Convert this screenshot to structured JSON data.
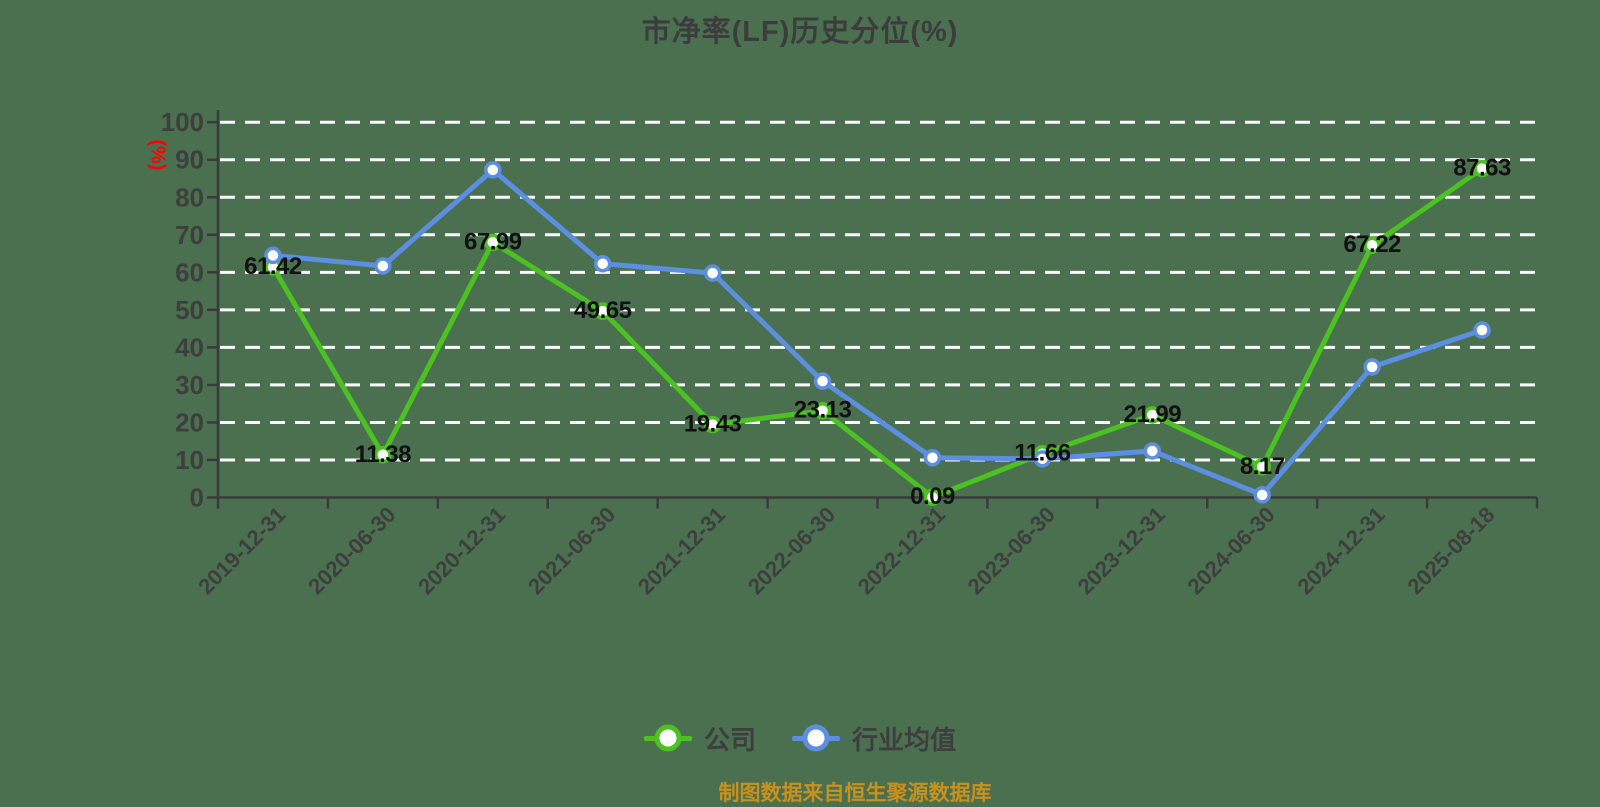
{
  "title": "市净率(LF)历史分位(%)",
  "y_axis": {
    "unit": "(%)",
    "ticks": [
      "0",
      "10",
      "20",
      "30",
      "40",
      "50",
      "60",
      "70",
      "80",
      "90",
      "100"
    ]
  },
  "chart_data": {
    "type": "line",
    "title": "市净率(LF)历史分位(%)",
    "ylabel": "(%)",
    "ylim": [
      0,
      100
    ],
    "grid": "horizontal white dashed lines, step 10",
    "legend_position": "bottom",
    "categories": [
      "2019-12-31",
      "2020-06-30",
      "2020-12-31",
      "2021-06-30",
      "2021-12-31",
      "2022-06-30",
      "2022-12-31",
      "2023-06-30",
      "2023-12-31",
      "2024-06-30",
      "2024-12-31",
      "2025-08-18"
    ],
    "series": [
      {
        "name": "公司",
        "color": "#4CC122",
        "values": [
          61.42,
          11.38,
          67.99,
          49.65,
          19.43,
          23.13,
          0.09,
          11.66,
          21.99,
          8.17,
          67.22,
          87.63
        ],
        "point_labels": [
          "61.42",
          "11.38",
          "67.99",
          "49.65",
          "19.43",
          "23.13",
          "0.09",
          "11.66",
          "21.99",
          "8.17",
          "67.22",
          "87.63"
        ],
        "show_labels": true
      },
      {
        "name": "行业均值",
        "color": "#5C8FE1",
        "values": [
          64.5,
          61.7,
          87.3,
          62.3,
          59.8,
          31.0,
          10.6,
          10.3,
          12.4,
          0.7,
          34.8,
          44.6
        ],
        "show_labels": false
      }
    ]
  },
  "footer": "制图数据来自恒生聚源数据库",
  "colors": {
    "background": "#4A7050",
    "company_series": "#4CC122",
    "industry_series": "#5C8FE1",
    "marker_fill": "#FFFFFF",
    "gridline": "#FAFAFA",
    "axis_line": "#3A3A3A",
    "tick_text": "#3E3E3E",
    "title_text": "#3C3C3C",
    "value_label_text": "#111111",
    "unit_label_text": "#FF0000",
    "footer_text": "#C8901C"
  }
}
